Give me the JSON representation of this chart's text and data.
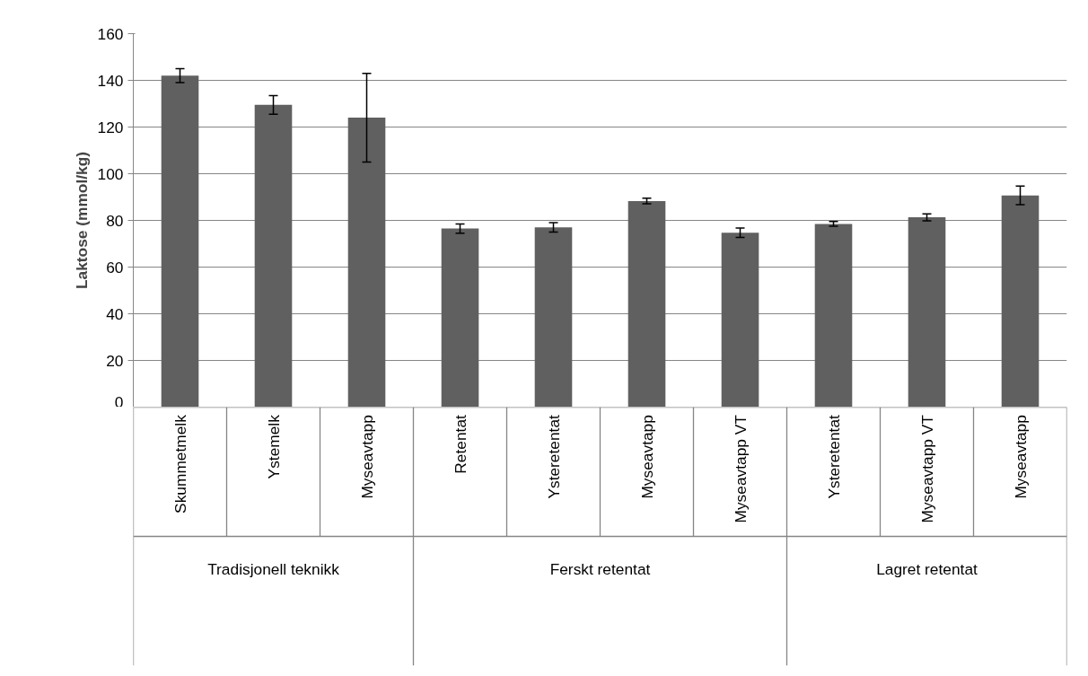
{
  "chart_data": {
    "type": "bar",
    "ylabel": "Laktose (mmol/kg)",
    "categories": [
      "Skummetmelk",
      "Ystemelk",
      "Myseavtapp",
      "Retentat",
      "Ysteretentat",
      "Myseavtapp",
      "Myseavtapp VT",
      "Ysteretentat",
      "Myseavtapp VT",
      "Myseavtapp"
    ],
    "values": [
      142,
      129.5,
      124,
      76.5,
      77,
      88.3,
      74.7,
      78.5,
      81.3,
      90.7
    ],
    "errors": [
      3,
      4,
      [
        105,
        143
      ],
      2,
      2,
      1.2,
      2,
      1,
      1.5,
      4
    ],
    "color": "#606060",
    "annotations": [
      "Tradisjonell teknikk",
      "Ferskt retentat",
      "Lagret retentat"
    ],
    "ylim": [
      0,
      160
    ],
    "yticks": [
      0,
      20,
      40,
      60,
      80,
      100,
      120,
      140,
      160
    ],
    "grid": "y"
  }
}
